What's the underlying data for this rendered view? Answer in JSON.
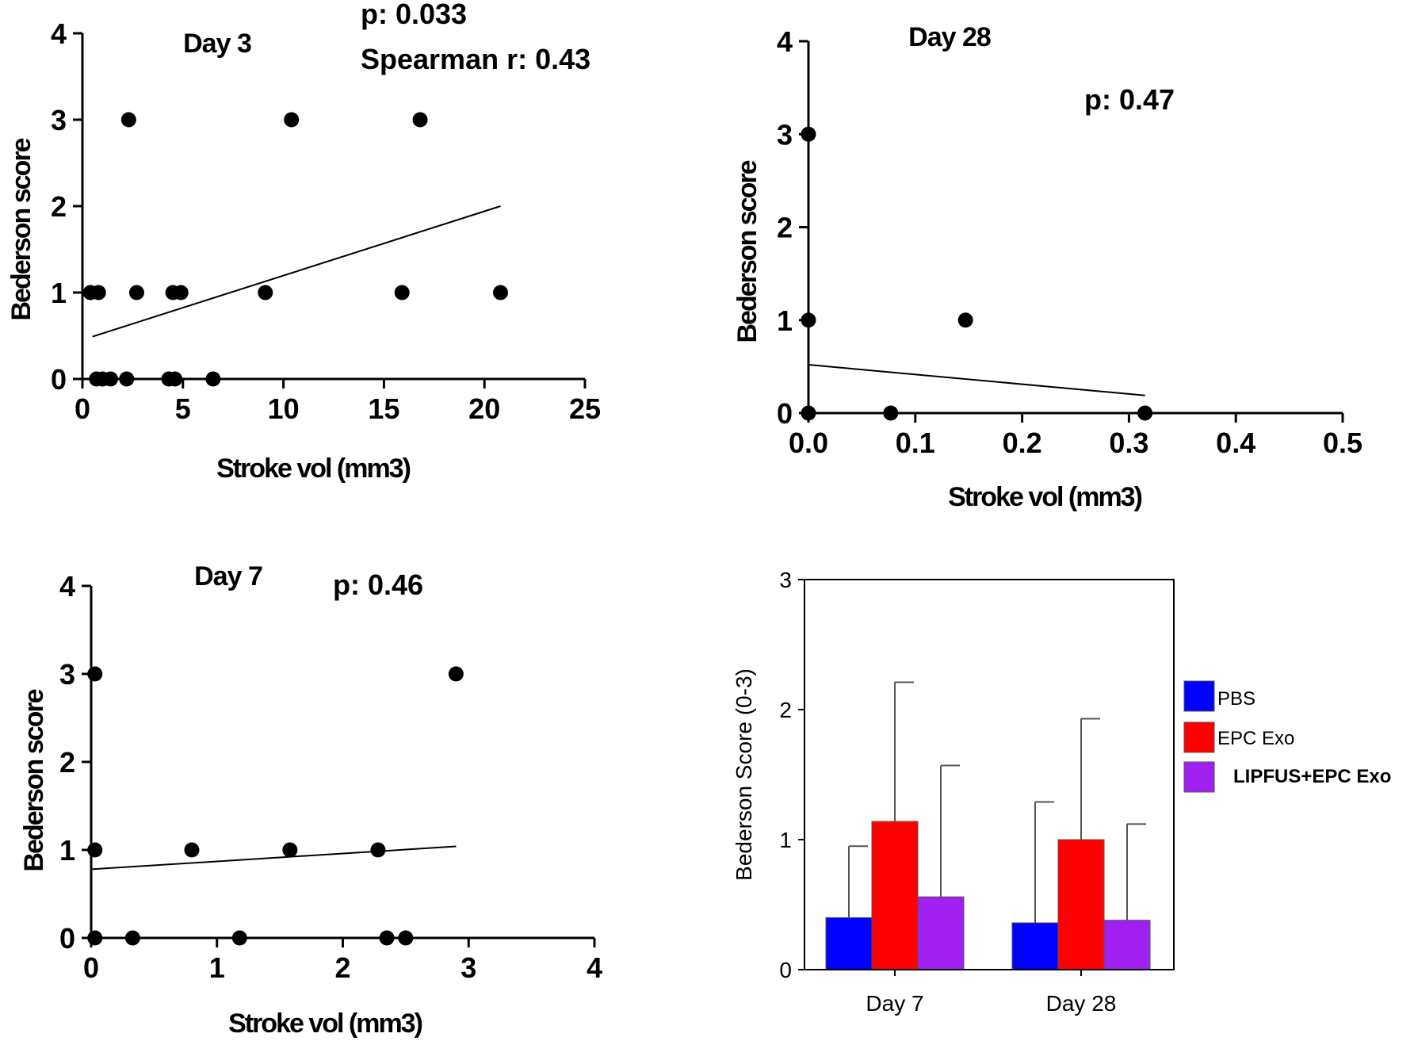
{
  "chart_data": [
    {
      "type": "scatter",
      "id": "day3",
      "title": "Day 3",
      "stats": [
        "p: 0.033",
        "Spearman r: 0.43"
      ],
      "xlabel": "Stroke vol (mm3)",
      "ylabel": "Bederson score",
      "xlim": [
        0,
        25
      ],
      "ylim": [
        0,
        4
      ],
      "xticks": [
        0,
        5,
        10,
        15,
        20,
        25
      ],
      "xtick_labels": [
        "0",
        "5",
        "10",
        "15",
        "20",
        "25"
      ],
      "yticks": [
        0,
        1,
        2,
        3,
        4
      ],
      "ytick_labels": [
        "0",
        "1",
        "2",
        "3",
        "4"
      ],
      "points": [
        [
          0.4,
          1
        ],
        [
          0.8,
          1
        ],
        [
          2.7,
          1
        ],
        [
          4.5,
          1
        ],
        [
          4.9,
          1
        ],
        [
          9.1,
          1
        ],
        [
          15.9,
          1
        ],
        [
          20.8,
          1
        ],
        [
          2.3,
          3
        ],
        [
          10.4,
          3
        ],
        [
          16.8,
          3
        ],
        [
          0.7,
          0
        ],
        [
          1.0,
          0
        ],
        [
          1.4,
          0
        ],
        [
          2.2,
          0
        ],
        [
          4.3,
          0
        ],
        [
          4.6,
          0
        ],
        [
          6.5,
          0
        ]
      ],
      "fit_line": [
        [
          0.5,
          0.49
        ],
        [
          20.8,
          2.0
        ]
      ]
    },
    {
      "type": "scatter",
      "id": "day28",
      "title": "Day 28",
      "stats": [
        "p: 0.47"
      ],
      "xlabel": "Stroke vol (mm3)",
      "ylabel": "Bederson score",
      "xlim": [
        0,
        0.5
      ],
      "ylim": [
        0,
        4
      ],
      "xticks": [
        0,
        0.1,
        0.2,
        0.3,
        0.4,
        0.5
      ],
      "xtick_labels": [
        "0.0",
        "0.1",
        "0.2",
        "0.3",
        "0.4",
        "0.5"
      ],
      "yticks": [
        0,
        1,
        2,
        3,
        4
      ],
      "ytick_labels": [
        "0",
        "1",
        "2",
        "3",
        "4"
      ],
      "points": [
        [
          0.0,
          3
        ],
        [
          0.0,
          1
        ],
        [
          0.0,
          0
        ],
        [
          0.077,
          0
        ],
        [
          0.147,
          1
        ],
        [
          0.315,
          0
        ]
      ],
      "fit_line": [
        [
          0.0,
          0.52
        ],
        [
          0.315,
          0.19
        ]
      ]
    },
    {
      "type": "scatter",
      "id": "day7",
      "title": "Day 7",
      "stats": [
        "p: 0.46"
      ],
      "xlabel": "Stroke vol (mm3)",
      "ylabel": "Bederson score",
      "xlim": [
        0,
        4
      ],
      "ylim": [
        0,
        4
      ],
      "xticks": [
        0,
        1,
        2,
        3,
        4
      ],
      "xtick_labels": [
        "0",
        "1",
        "2",
        "3",
        "4"
      ],
      "yticks": [
        0,
        1,
        2,
        3,
        4
      ],
      "ytick_labels": [
        "0",
        "1",
        "2",
        "3",
        "4"
      ],
      "points": [
        [
          0.03,
          3
        ],
        [
          0.03,
          1
        ],
        [
          0.03,
          0
        ],
        [
          0.33,
          0
        ],
        [
          0.8,
          1
        ],
        [
          1.18,
          0
        ],
        [
          1.58,
          1
        ],
        [
          2.28,
          1
        ],
        [
          2.35,
          0
        ],
        [
          2.5,
          0
        ],
        [
          2.9,
          3
        ]
      ],
      "fit_line": [
        [
          0.0,
          0.78
        ],
        [
          2.9,
          1.04
        ]
      ]
    },
    {
      "type": "bar",
      "id": "summary",
      "title": "",
      "xlabel": "",
      "ylabel": "Bederson Score (0-3)",
      "ylim": [
        0,
        3
      ],
      "yticks": [
        0,
        1,
        2,
        3
      ],
      "ytick_labels": [
        "0",
        "1",
        "2",
        "3"
      ],
      "categories": [
        "Day 7",
        "Day 28"
      ],
      "series": [
        {
          "name": "PBS",
          "color": "#0000ff",
          "values": [
            0.4,
            0.36
          ],
          "err_upper": [
            0.95,
            1.29
          ]
        },
        {
          "name": "EPC Exo",
          "color": "#ff0000",
          "values": [
            1.14,
            1.0
          ],
          "err_upper": [
            2.21,
            1.93
          ]
        },
        {
          "name": "LIPFUS+EPC Exo",
          "color": "#a020f0",
          "values": [
            0.56,
            0.38
          ],
          "err_upper": [
            1.57,
            1.12
          ]
        }
      ],
      "legend_position": "right"
    }
  ]
}
